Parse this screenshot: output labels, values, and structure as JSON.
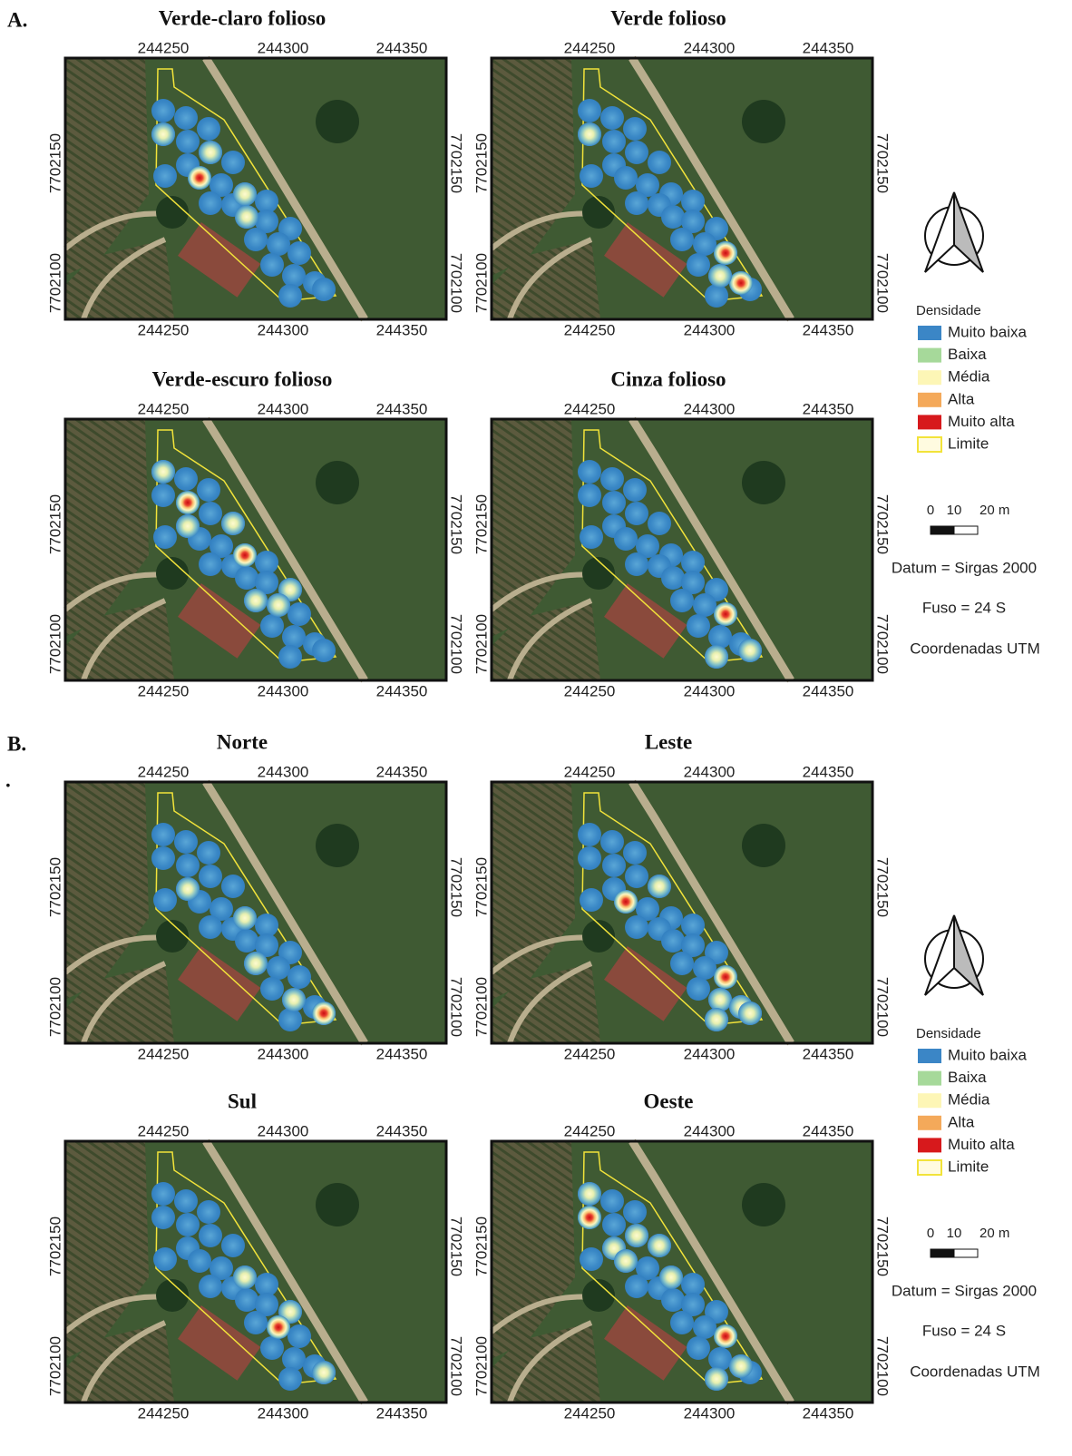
{
  "figure": {
    "sections": [
      {
        "label": "A.",
        "panels": [
          {
            "title": "Verde-claro folioso"
          },
          {
            "title": "Verde folioso"
          },
          {
            "title": "Verde-escuro folioso"
          },
          {
            "title": "Cinza folioso"
          }
        ]
      },
      {
        "label": "B.",
        "mark": ".",
        "panels": [
          {
            "title": "Norte"
          },
          {
            "title": "Leste"
          },
          {
            "title": "Sul"
          },
          {
            "title": "Oeste"
          }
        ]
      }
    ],
    "x_ticks": [
      244250,
      244300,
      244350
    ],
    "y_ticks": [
      7702150,
      7702100
    ],
    "legend": {
      "title": "Densidade",
      "items": [
        {
          "name": "Muito baixa",
          "color": "#3b86c6"
        },
        {
          "name": "Baixa",
          "color": "#a6d99a"
        },
        {
          "name": "Média",
          "color": "#fdf6b6"
        },
        {
          "name": "Alta",
          "color": "#f4a95a"
        },
        {
          "name": "Muito alta",
          "color": "#d7191c"
        },
        {
          "name": "Limite",
          "color": "#f2e33a",
          "outline": true
        }
      ],
      "scale": [
        0,
        10,
        "20 m"
      ],
      "datum": "Datum = Sirgas 2000",
      "fuso": "Fuso = 24 S",
      "coords": "Coordenadas UTM"
    }
  }
}
